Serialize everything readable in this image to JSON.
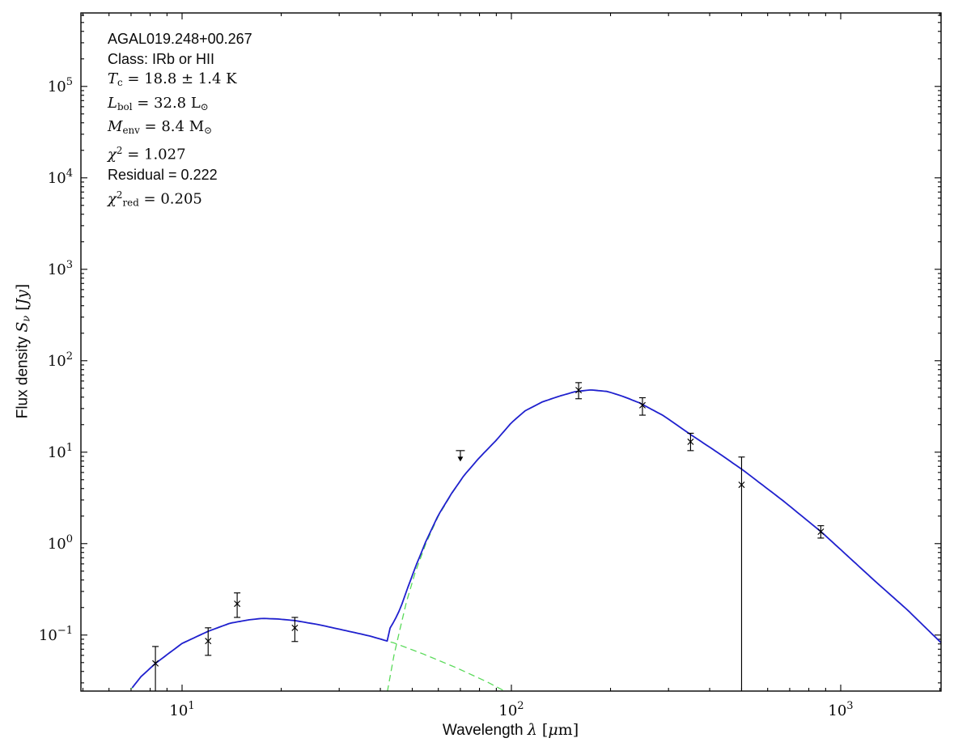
{
  "figure": {
    "background": "#ffffff"
  },
  "colors": {
    "model_total": "#2020cf",
    "components": "#5ada5a",
    "data_points": "#000000",
    "frame": "#000000",
    "text": "#0a0a0a"
  },
  "annotation": {
    "lines": [
      {
        "name": "source-name",
        "segments": [
          {
            "t": "AGAL019.248+00.267",
            "s": "sf"
          }
        ]
      },
      {
        "name": "classification",
        "segments": [
          {
            "t": "Class: IRb or HII",
            "s": "sf"
          }
        ]
      },
      {
        "name": "dust-temperature",
        "segments": [
          {
            "t": "T",
            "s": "it"
          },
          {
            "t": "c",
            "s": "rm sub"
          },
          {
            "t": " = 18.8 ± 1.4 K",
            "s": "rm"
          }
        ]
      },
      {
        "name": "bolometric-luminosity",
        "segments": [
          {
            "t": "L",
            "s": "it"
          },
          {
            "t": "bol",
            "s": "rm sub"
          },
          {
            "t": " = 32.8 L",
            "s": "rm"
          },
          {
            "t": "⊙",
            "s": "rm sub"
          }
        ]
      },
      {
        "name": "envelope-mass",
        "segments": [
          {
            "t": "M",
            "s": "it"
          },
          {
            "t": "env",
            "s": "rm sub"
          },
          {
            "t": " = 8.4 M",
            "s": "rm"
          },
          {
            "t": "⊙",
            "s": "rm sub"
          }
        ]
      },
      {
        "name": "chi-squared",
        "segments": [
          {
            "t": "χ",
            "s": "it"
          },
          {
            "t": "2",
            "s": "rm sup"
          },
          {
            "t": " = 1.027",
            "s": "rm"
          }
        ]
      },
      {
        "name": "residual",
        "segments": [
          {
            "t": "Residual = 0.222",
            "s": "sf"
          }
        ]
      },
      {
        "name": "chi-squared-reduced",
        "segments": [
          {
            "t": "χ",
            "s": "it"
          },
          {
            "t": "2",
            "s": "rm sup"
          },
          {
            "t": "red",
            "s": "rm sub"
          },
          {
            "t": " = 0.205",
            "s": "rm"
          }
        ]
      }
    ]
  },
  "axes": {
    "x": {
      "label_segments": [
        {
          "t": "Wavelength ",
          "s": "sf"
        },
        {
          "t": "λ",
          "s": "it"
        },
        {
          "t": " [",
          "s": "rm"
        },
        {
          "t": "μ",
          "s": "it"
        },
        {
          "t": "m]",
          "s": "rm"
        }
      ],
      "tick_exponents": [
        1,
        2,
        3
      ]
    },
    "y": {
      "label_segments": [
        {
          "t": "Flux density ",
          "s": "sf"
        },
        {
          "t": "S",
          "s": "it"
        },
        {
          "t": "ν",
          "s": "it sub"
        },
        {
          "t": " [",
          "s": "rm"
        },
        {
          "t": "Jy",
          "s": "it"
        },
        {
          "t": "]",
          "s": "rm"
        }
      ],
      "tick_exponents": [
        -1,
        0,
        1,
        2,
        3,
        4,
        5
      ]
    }
  },
  "chart_data": {
    "type": "line",
    "title": "",
    "xlabel": "Wavelength λ [μm]",
    "ylabel": "Flux density S_ν [Jy]",
    "xscale": "log",
    "yscale": "log",
    "xlim": [
      4.93,
      2017
    ],
    "ylim": [
      0.0244,
      636000
    ],
    "x_major_ticks": [
      10,
      100,
      1000
    ],
    "y_major_ticks": [
      0.1,
      1,
      10,
      100,
      1000,
      10000,
      100000
    ],
    "grid": false,
    "legend": "none",
    "series": [
      {
        "name": "warm-component",
        "role": "model-component",
        "color": "#5ada5a",
        "line": "dashed",
        "width": 1.3,
        "points": [
          [
            6.7,
            0.021
          ],
          [
            7.5,
            0.035
          ],
          [
            8.3,
            0.049
          ],
          [
            10,
            0.081
          ],
          [
            12,
            0.11
          ],
          [
            14,
            0.135
          ],
          [
            16,
            0.147
          ],
          [
            17.5,
            0.152
          ],
          [
            19.5,
            0.15
          ],
          [
            22,
            0.144
          ],
          [
            26,
            0.13
          ],
          [
            31,
            0.113
          ],
          [
            37,
            0.098
          ],
          [
            44,
            0.082
          ],
          [
            54,
            0.062
          ],
          [
            68,
            0.044
          ],
          [
            84,
            0.031
          ],
          [
            95,
            0.0246
          ]
        ]
      },
      {
        "name": "cold-component",
        "role": "model-component",
        "color": "#5ada5a",
        "line": "dashed",
        "width": 1.3,
        "points": [
          [
            42,
            0.024
          ],
          [
            44,
            0.06
          ],
          [
            46,
            0.12
          ],
          [
            48,
            0.23
          ],
          [
            51,
            0.48
          ],
          [
            55,
            1.0
          ],
          [
            60,
            2.0
          ],
          [
            66,
            3.55
          ],
          [
            72,
            5.6
          ],
          [
            80,
            8.7
          ],
          [
            90,
            13.5
          ],
          [
            100,
            21.0
          ],
          [
            110,
            28.3
          ],
          [
            124,
            35.4
          ],
          [
            139,
            40.7
          ],
          [
            156,
            45.9
          ],
          [
            174,
            48.0
          ],
          [
            196,
            46.1
          ],
          [
            218,
            40.8
          ],
          [
            245,
            34.6
          ],
          [
            290,
            25.0
          ],
          [
            350,
            15.6
          ],
          [
            425,
            9.8
          ],
          [
            507,
            6.3
          ],
          [
            672,
            2.9
          ],
          [
            880,
            1.31
          ],
          [
            1270,
            0.39
          ],
          [
            1590,
            0.19
          ],
          [
            2020,
            0.082
          ]
        ]
      },
      {
        "name": "model-total",
        "role": "total-fit",
        "color": "#2020cf",
        "line": "solid",
        "width": 1.8,
        "sum_of": [
          "warm-component",
          "cold-component"
        ]
      }
    ],
    "data_points": [
      {
        "wavelength_um": 8.3,
        "flux_jy": 0.049,
        "flux_hi_jy": 0.075,
        "flux_lo_jy": null,
        "error_to_axis": true
      },
      {
        "wavelength_um": 12,
        "flux_jy": 0.086,
        "flux_hi_jy": 0.12,
        "flux_lo_jy": 0.06
      },
      {
        "wavelength_um": 14.7,
        "flux_jy": 0.22,
        "flux_hi_jy": 0.289,
        "flux_lo_jy": 0.156
      },
      {
        "wavelength_um": 22,
        "flux_jy": 0.12,
        "flux_hi_jy": 0.156,
        "flux_lo_jy": 0.085
      },
      {
        "wavelength_um": 70,
        "flux_jy": 10.4,
        "upper_limit": true,
        "arrow_tip_jy": 7.9
      },
      {
        "wavelength_um": 160,
        "flux_jy": 47.7,
        "flux_hi_jy": 57.6,
        "flux_lo_jy": 38.4
      },
      {
        "wavelength_um": 250,
        "flux_jy": 32.6,
        "flux_hi_jy": 39.4,
        "flux_lo_jy": 25.4
      },
      {
        "wavelength_um": 350,
        "flux_jy": 13.0,
        "flux_hi_jy": 16.1,
        "flux_lo_jy": 10.4
      },
      {
        "wavelength_um": 500,
        "flux_jy": 4.4,
        "flux_hi_jy": 8.85,
        "flux_lo_jy": null,
        "error_to_axis": true
      },
      {
        "wavelength_um": 870,
        "flux_jy": 1.35,
        "flux_hi_jy": 1.57,
        "flux_lo_jy": 1.15
      }
    ]
  }
}
